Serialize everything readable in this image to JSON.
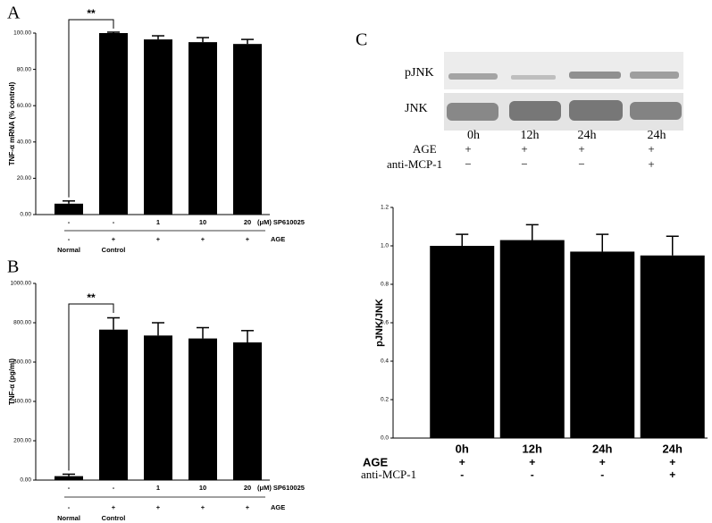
{
  "chart_data": [
    {
      "type": "bar",
      "panel": "A",
      "ylabel": "TNF-α mRNA (% control)",
      "color": "#000000",
      "categories": [
        "Normal",
        "Control",
        null,
        null,
        null
      ],
      "values": [
        6,
        100,
        96.5,
        95,
        94
      ],
      "errors": [
        1.5,
        0.5,
        2,
        2.5,
        2.5
      ],
      "ylim": [
        0,
        100
      ],
      "yticks": [
        {
          "value": 0,
          "label": "0.00"
        },
        {
          "value": 20,
          "label": "20.00"
        },
        {
          "value": 40,
          "label": "40.00"
        },
        {
          "value": 60,
          "label": "60.00"
        },
        {
          "value": 80,
          "label": "80.00"
        },
        {
          "value": 100,
          "label": "100.00"
        }
      ],
      "annotations": [
        "**"
      ],
      "rows": [
        {
          "name": "(μM) SP610025",
          "values": [
            "-",
            "-",
            "1",
            "10",
            "20"
          ]
        },
        {
          "name": "AGE",
          "values": [
            "-",
            "+",
            "+",
            "+",
            "+"
          ]
        }
      ]
    },
    {
      "type": "bar",
      "panel": "B",
      "ylabel": "TNF-α (pg/ml)",
      "color": "#000000",
      "categories": [
        "Normal",
        "Control",
        null,
        null,
        null
      ],
      "values": [
        20,
        765,
        735,
        720,
        700
      ],
      "errors": [
        10,
        60,
        65,
        55,
        60
      ],
      "ylim": [
        0,
        1000
      ],
      "yticks": [
        {
          "value": 0,
          "label": "0.00"
        },
        {
          "value": 200,
          "label": "200.00"
        },
        {
          "value": 400,
          "label": "400.00"
        },
        {
          "value": 600,
          "label": "600.00"
        },
        {
          "value": 800,
          "label": "800.00"
        },
        {
          "value": 1000,
          "label": "1000.00"
        }
      ],
      "annotations": [
        "**"
      ],
      "rows": [
        {
          "name": "(μM) SP610025",
          "values": [
            "-",
            "-",
            "1",
            "10",
            "20"
          ]
        },
        {
          "name": "AGE",
          "values": [
            "-",
            "+",
            "+",
            "+",
            "+"
          ]
        }
      ]
    },
    {
      "type": "bar",
      "panel": "C",
      "ylabel": "pJNK/JNK",
      "color": "#000000",
      "categories": [
        "0h",
        "12h",
        "24h",
        "24h"
      ],
      "values": [
        1.0,
        1.03,
        0.97,
        0.95
      ],
      "errors": [
        0.06,
        0.08,
        0.09,
        0.1
      ],
      "ylim": [
        0,
        1.2
      ],
      "yticks": [
        {
          "value": 0,
          "label": "0.0"
        },
        {
          "value": 0.2,
          "label": "0.2"
        },
        {
          "value": 0.4,
          "label": "0.4"
        },
        {
          "value": 0.6,
          "label": "0.6"
        },
        {
          "value": 0.8,
          "label": "0.8"
        },
        {
          "value": 1.0,
          "label": "1.0"
        },
        {
          "value": 1.2,
          "label": "1.2"
        }
      ],
      "rows": [
        {
          "name": "AGE",
          "values": [
            "+",
            "+",
            "+",
            "+"
          ]
        },
        {
          "name": "anti-MCP-1",
          "values": [
            "-",
            "-",
            "-",
            "+"
          ]
        }
      ],
      "blot": {
        "bands": [
          "pJNK",
          "JNK"
        ],
        "lanes": [
          "0h",
          "12h",
          "24h",
          "24h"
        ],
        "rows": [
          {
            "name": "AGE",
            "values": [
              "+",
              "+",
              "+",
              "+"
            ]
          },
          {
            "name": "anti-MCP-1",
            "values": [
              "−",
              "−",
              "−",
              "+"
            ]
          }
        ]
      }
    }
  ]
}
